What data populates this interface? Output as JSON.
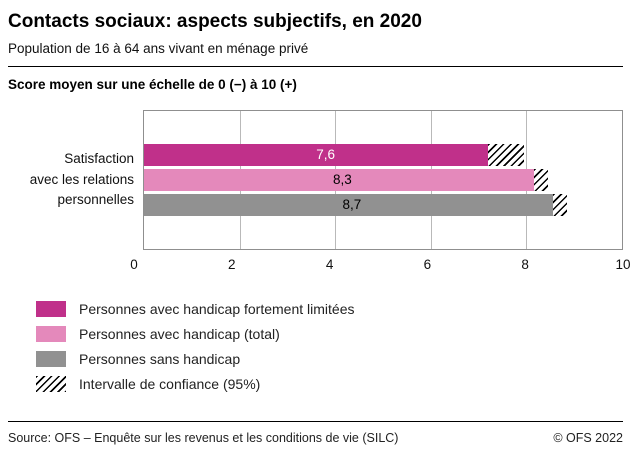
{
  "header": {
    "title": "Contacts sociaux: aspects subjectifs, en 2020",
    "subtitle": "Population de 16 à 64 ans vivant en ménage privé"
  },
  "axis_note": "Score moyen sur une échelle de 0 (−) à 10 (+)",
  "chart_data": {
    "type": "bar",
    "orientation": "horizontal",
    "title": "Score moyen sur une échelle de 0 (−) à 10 (+)",
    "category": "Satisfaction avec les relations personnelles",
    "category_label_lines": [
      "Satisfaction",
      "avec les relations",
      "personnelles"
    ],
    "xlim": [
      0,
      10
    ],
    "xticks": [
      0,
      2,
      4,
      6,
      8,
      10
    ],
    "gridlines": [
      2,
      4,
      6,
      8
    ],
    "grid": true,
    "legend_position": "bottom-left",
    "series": [
      {
        "name": "Personnes avec handicap fortement limitées",
        "value": 7.6,
        "value_label": "7,6",
        "ci": [
          7.2,
          7.95
        ],
        "color": "#c0308a",
        "label_color": "#ffffff"
      },
      {
        "name": "Personnes avec handicap (total)",
        "value": 8.3,
        "value_label": "8,3",
        "ci": [
          8.15,
          8.45
        ],
        "color": "#e489bb",
        "label_color": "#000000"
      },
      {
        "name": "Personnes sans handicap",
        "value": 8.7,
        "value_label": "8,7",
        "ci": [
          8.55,
          8.85
        ],
        "color": "#919191",
        "label_color": "#000000"
      }
    ]
  },
  "legend": {
    "items": [
      {
        "label": "Personnes avec handicap fortement limitées",
        "swatch": "solid",
        "color": "#c0308a"
      },
      {
        "label": "Personnes avec handicap (total)",
        "swatch": "solid",
        "color": "#e489bb"
      },
      {
        "label": "Personnes sans handicap",
        "swatch": "solid",
        "color": "#919191"
      },
      {
        "label": "Intervalle de confiance (95%)",
        "swatch": "hatch",
        "color": ""
      }
    ]
  },
  "footer": {
    "source": "Source: OFS – Enquête sur les revenus et les conditions de vie (SILC)",
    "copyright": "© OFS 2022"
  }
}
